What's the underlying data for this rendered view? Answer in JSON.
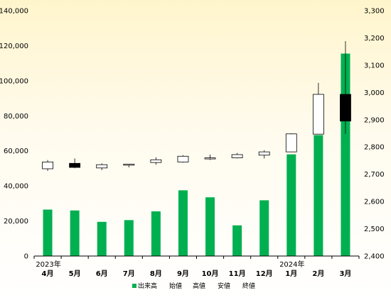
{
  "chart_data": {
    "type": "bar",
    "categories": [
      "4月",
      "5月",
      "6月",
      "7月",
      "8月",
      "9月",
      "10月",
      "11月",
      "12月",
      "1月",
      "2月",
      "3月"
    ],
    "year_labels": [
      {
        "index": 0,
        "label": "2023年"
      },
      {
        "index": 9,
        "label": "2024年"
      }
    ],
    "series": [
      {
        "name": "出来高",
        "type": "bar",
        "axis": "left",
        "values": [
          26500,
          26000,
          19500,
          20500,
          25500,
          37500,
          33500,
          17500,
          31800,
          58000,
          69000,
          115500
        ]
      },
      {
        "type": "candlestick",
        "axis": "right",
        "candles": [
          {
            "open": 2720,
            "high": 2752,
            "low": 2712,
            "close": 2745
          },
          {
            "open": 2740,
            "high": 2758,
            "low": 2722,
            "close": 2725
          },
          {
            "open": 2723,
            "high": 2740,
            "low": 2715,
            "close": 2735
          },
          {
            "open": 2735,
            "high": 2738,
            "low": 2725,
            "close": 2737
          },
          {
            "open": 2743,
            "high": 2762,
            "low": 2735,
            "close": 2753
          },
          {
            "open": 2745,
            "high": 2770,
            "low": 2743,
            "close": 2766
          },
          {
            "open": 2757,
            "high": 2772,
            "low": 2752,
            "close": 2760
          },
          {
            "open": 2760,
            "high": 2778,
            "low": 2758,
            "close": 2772
          },
          {
            "open": 2770,
            "high": 2788,
            "low": 2758,
            "close": 2782
          },
          {
            "open": 2782,
            "high": 2850,
            "low": 2782,
            "close": 2848
          },
          {
            "open": 2847,
            "high": 3035,
            "low": 2847,
            "close": 2993
          },
          {
            "open": 2993,
            "high": 3188,
            "low": 2848,
            "close": 2895
          }
        ]
      }
    ],
    "legend": [
      "出来高",
      "始値",
      "高値",
      "安値",
      "終値"
    ],
    "legend_position": "bottom",
    "left_axis": {
      "min": 0,
      "max": 140000,
      "ticks": [
        "0",
        "20,000",
        "40,000",
        "60,000",
        "80,000",
        "100,000",
        "120,000",
        "140,000"
      ]
    },
    "right_axis": {
      "min": 2400,
      "max": 3300,
      "ticks": [
        "2,400",
        "2,500",
        "2,600",
        "2,700",
        "2,800",
        "2,900",
        "3,000",
        "3,100",
        "3,200",
        "3,300"
      ]
    },
    "colors": {
      "volume": "#00b050",
      "candle_up": "#ffffff",
      "candle_down": "#000000",
      "wick": "#000000"
    },
    "grid": false
  }
}
